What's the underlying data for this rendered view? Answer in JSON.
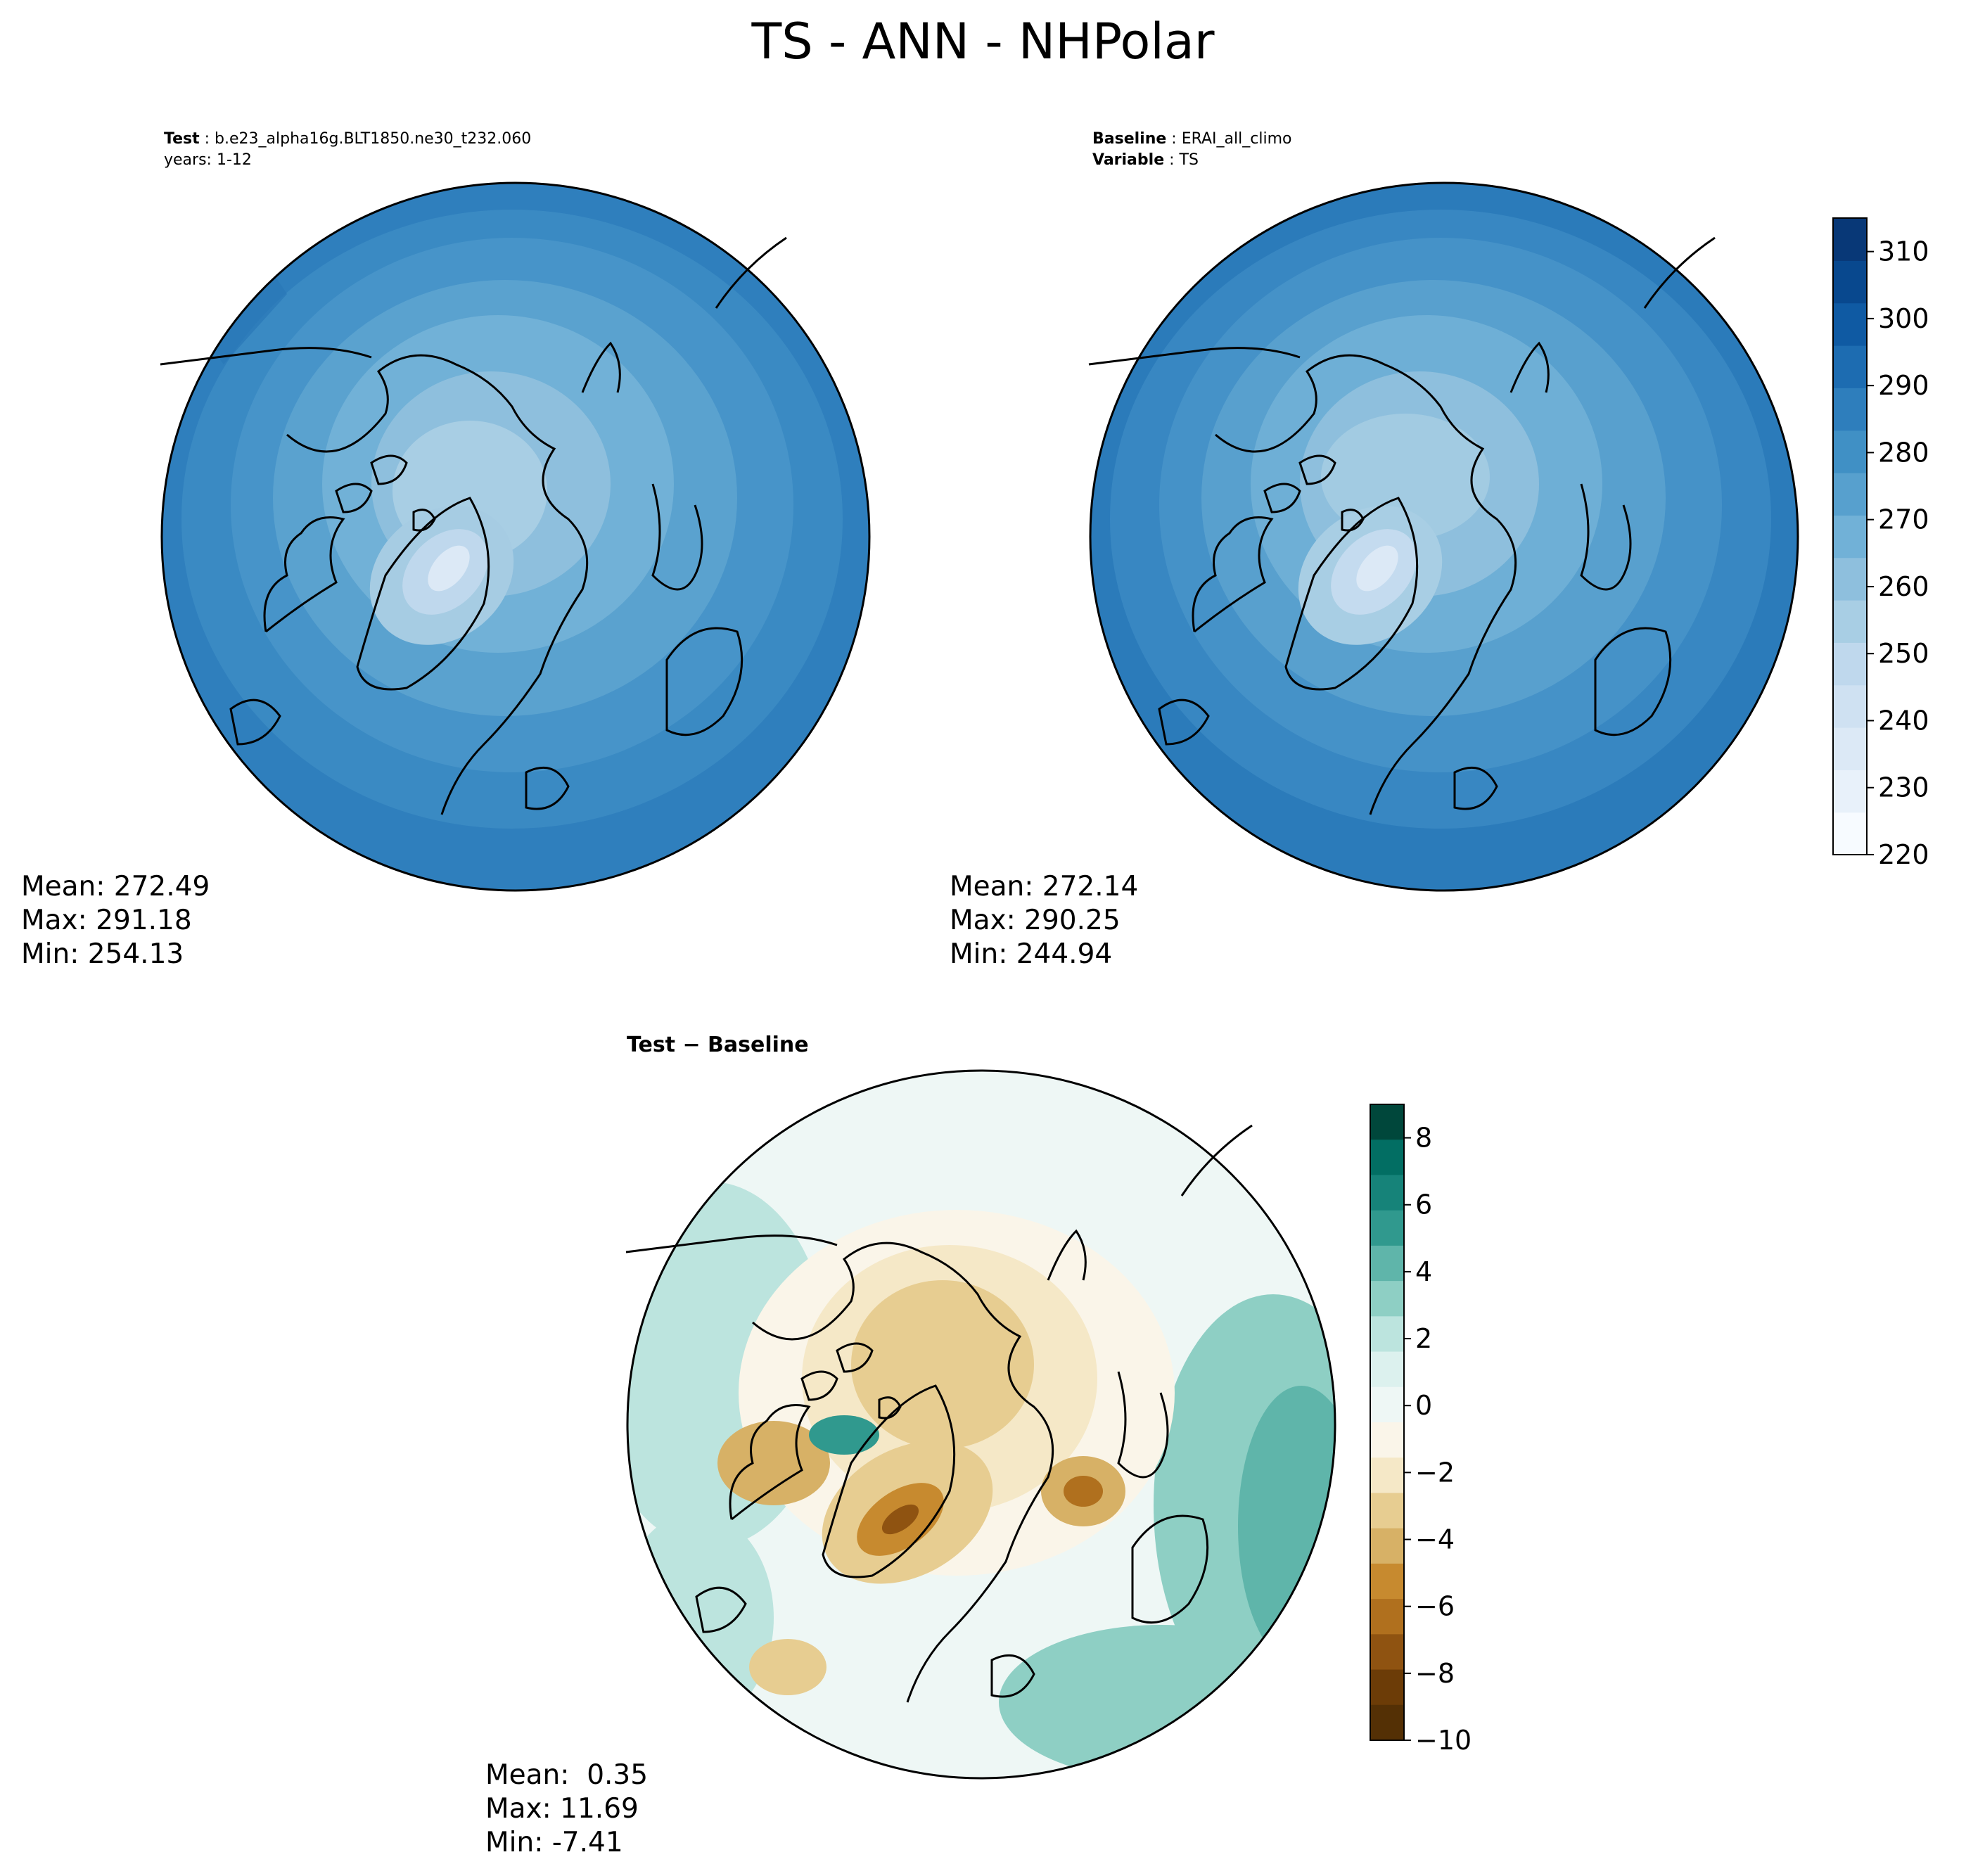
{
  "figure": {
    "title": "TS - ANN - NHPolar"
  },
  "panels": {
    "test": {
      "label_bold": "Test",
      "label_value": "b.e23_alpha16g.BLT1850.ne30_t232.060",
      "years": "years: 1-12",
      "mean": "Mean: 272.49",
      "max": "Max: 291.18",
      "min": "Min: 254.13"
    },
    "baseline": {
      "label_bold": "Baseline",
      "label_value": "ERAI_all_climo",
      "variable_bold": "Variable",
      "variable_value": "TS",
      "mean": "Mean: 272.14",
      "max": "Max: 290.25",
      "min": "Min: 244.94"
    },
    "diff": {
      "title": "Test − Baseline",
      "mean": "Mean:  0.35",
      "max": "Max: 11.69",
      "min": "Min: -7.41"
    }
  },
  "colorbars": {
    "abs": {
      "ticks": [
        "220",
        "230",
        "240",
        "250",
        "260",
        "270",
        "280",
        "290",
        "300",
        "310"
      ],
      "colors": [
        "#f7fbff",
        "#e8f1fa",
        "#dce9f6",
        "#cfe1f2",
        "#bfd8ed",
        "#a8cee4",
        "#8ebfdd",
        "#71b1d7",
        "#57a0ce",
        "#4090c5",
        "#2e7ebc",
        "#1d6cb1",
        "#0f5aa3",
        "#08488e",
        "#083877"
      ]
    },
    "diff": {
      "ticks": [
        "8",
        "6",
        "4",
        "2",
        "0",
        "−2",
        "−4",
        "−6",
        "−8",
        "−10"
      ],
      "colors": [
        "#00473b",
        "#026e63",
        "#168379",
        "#30998e",
        "#5fb5aa",
        "#8ecfc4",
        "#bce4de",
        "#dcf1ee",
        "#eef7f5",
        "#faf5e9",
        "#f5e8c7",
        "#e7cd91",
        "#d7b166",
        "#c78a2f",
        "#b0701e",
        "#8f5311",
        "#6c3c07",
        "#543005"
      ]
    }
  }
}
